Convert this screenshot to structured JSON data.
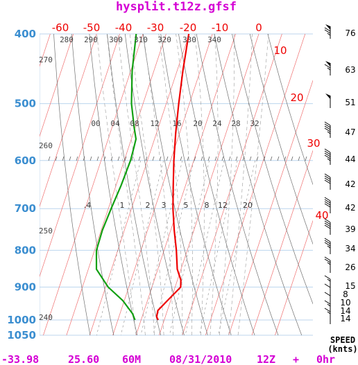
{
  "chart_data": {
    "type": "line",
    "title": "hysplit.t12z.gfsf",
    "diagram": "skew-T log-P",
    "pressure_levels": [
      "400",
      "500",
      "600",
      "700",
      "800",
      "900",
      "1000",
      "1050"
    ],
    "temperature_ticks": [
      "-60",
      "-50",
      "-40",
      "-30",
      "-20",
      "-10",
      "0",
      "10",
      "20",
      "30",
      "40"
    ],
    "theta_labels_top": [
      "280",
      "290",
      "300",
      "310",
      "320",
      "330",
      "340"
    ],
    "theta_labels_left": [
      "270",
      "260",
      "250",
      "240"
    ],
    "theta_e_labels": [
      "00",
      "04",
      "08",
      "12",
      "16",
      "20",
      "24",
      "28",
      "32"
    ],
    "mixing_ratio_labels": [
      ".4",
      "1",
      "2",
      "3",
      "5",
      "8",
      "12",
      "20"
    ],
    "series": [
      {
        "name": "temperature",
        "color": "#ee0000",
        "points": [
          {
            "p": 400,
            "t": -30.2
          },
          {
            "p": 450,
            "t": -27.5
          },
          {
            "p": 500,
            "t": -24.6
          },
          {
            "p": 550,
            "t": -21.7
          },
          {
            "p": 600,
            "t": -18.6
          },
          {
            "p": 650,
            "t": -15.3
          },
          {
            "p": 700,
            "t": -12.1
          },
          {
            "p": 750,
            "t": -8.5
          },
          {
            "p": 800,
            "t": -4.7
          },
          {
            "p": 850,
            "t": -1.6
          },
          {
            "p": 880,
            "t": 1.5
          },
          {
            "p": 900,
            "t": 2.4
          },
          {
            "p": 940,
            "t": -1.4
          },
          {
            "p": 970,
            "t": -4.1
          },
          {
            "p": 990,
            "t": -3.7
          },
          {
            "p": 1000,
            "t": -2.6
          }
        ]
      },
      {
        "name": "dewpoint",
        "color": "#12a012",
        "points": [
          {
            "p": 400,
            "t": -52.9
          },
          {
            "p": 450,
            "t": -49.4
          },
          {
            "p": 500,
            "t": -45.0
          },
          {
            "p": 540,
            "t": -40.4
          },
          {
            "p": 560,
            "t": -38.0
          },
          {
            "p": 580,
            "t": -37.6
          },
          {
            "p": 600,
            "t": -37.3
          },
          {
            "p": 650,
            "t": -37.8
          },
          {
            "p": 700,
            "t": -38.8
          },
          {
            "p": 750,
            "t": -39.5
          },
          {
            "p": 800,
            "t": -39.2
          },
          {
            "p": 850,
            "t": -36.5
          },
          {
            "p": 900,
            "t": -28.9
          },
          {
            "p": 940,
            "t": -20.6
          },
          {
            "p": 980,
            "t": -14.6
          },
          {
            "p": 1000,
            "t": -12.6
          }
        ]
      }
    ],
    "wind": {
      "speeds": [
        "76",
        "63",
        "51",
        "47",
        "44",
        "42",
        "42",
        "39",
        "34",
        "26",
        "15",
        "8",
        "10",
        "14",
        "14"
      ],
      "speed_header": [
        "SPEED",
        "(knts)"
      ]
    },
    "footer": {
      "lat": "-33.98",
      "lon": "25.60",
      "height": "60M",
      "date": "08/31/2010",
      "cycle": "12Z",
      "plus": "+",
      "forecast": "0hr"
    }
  }
}
